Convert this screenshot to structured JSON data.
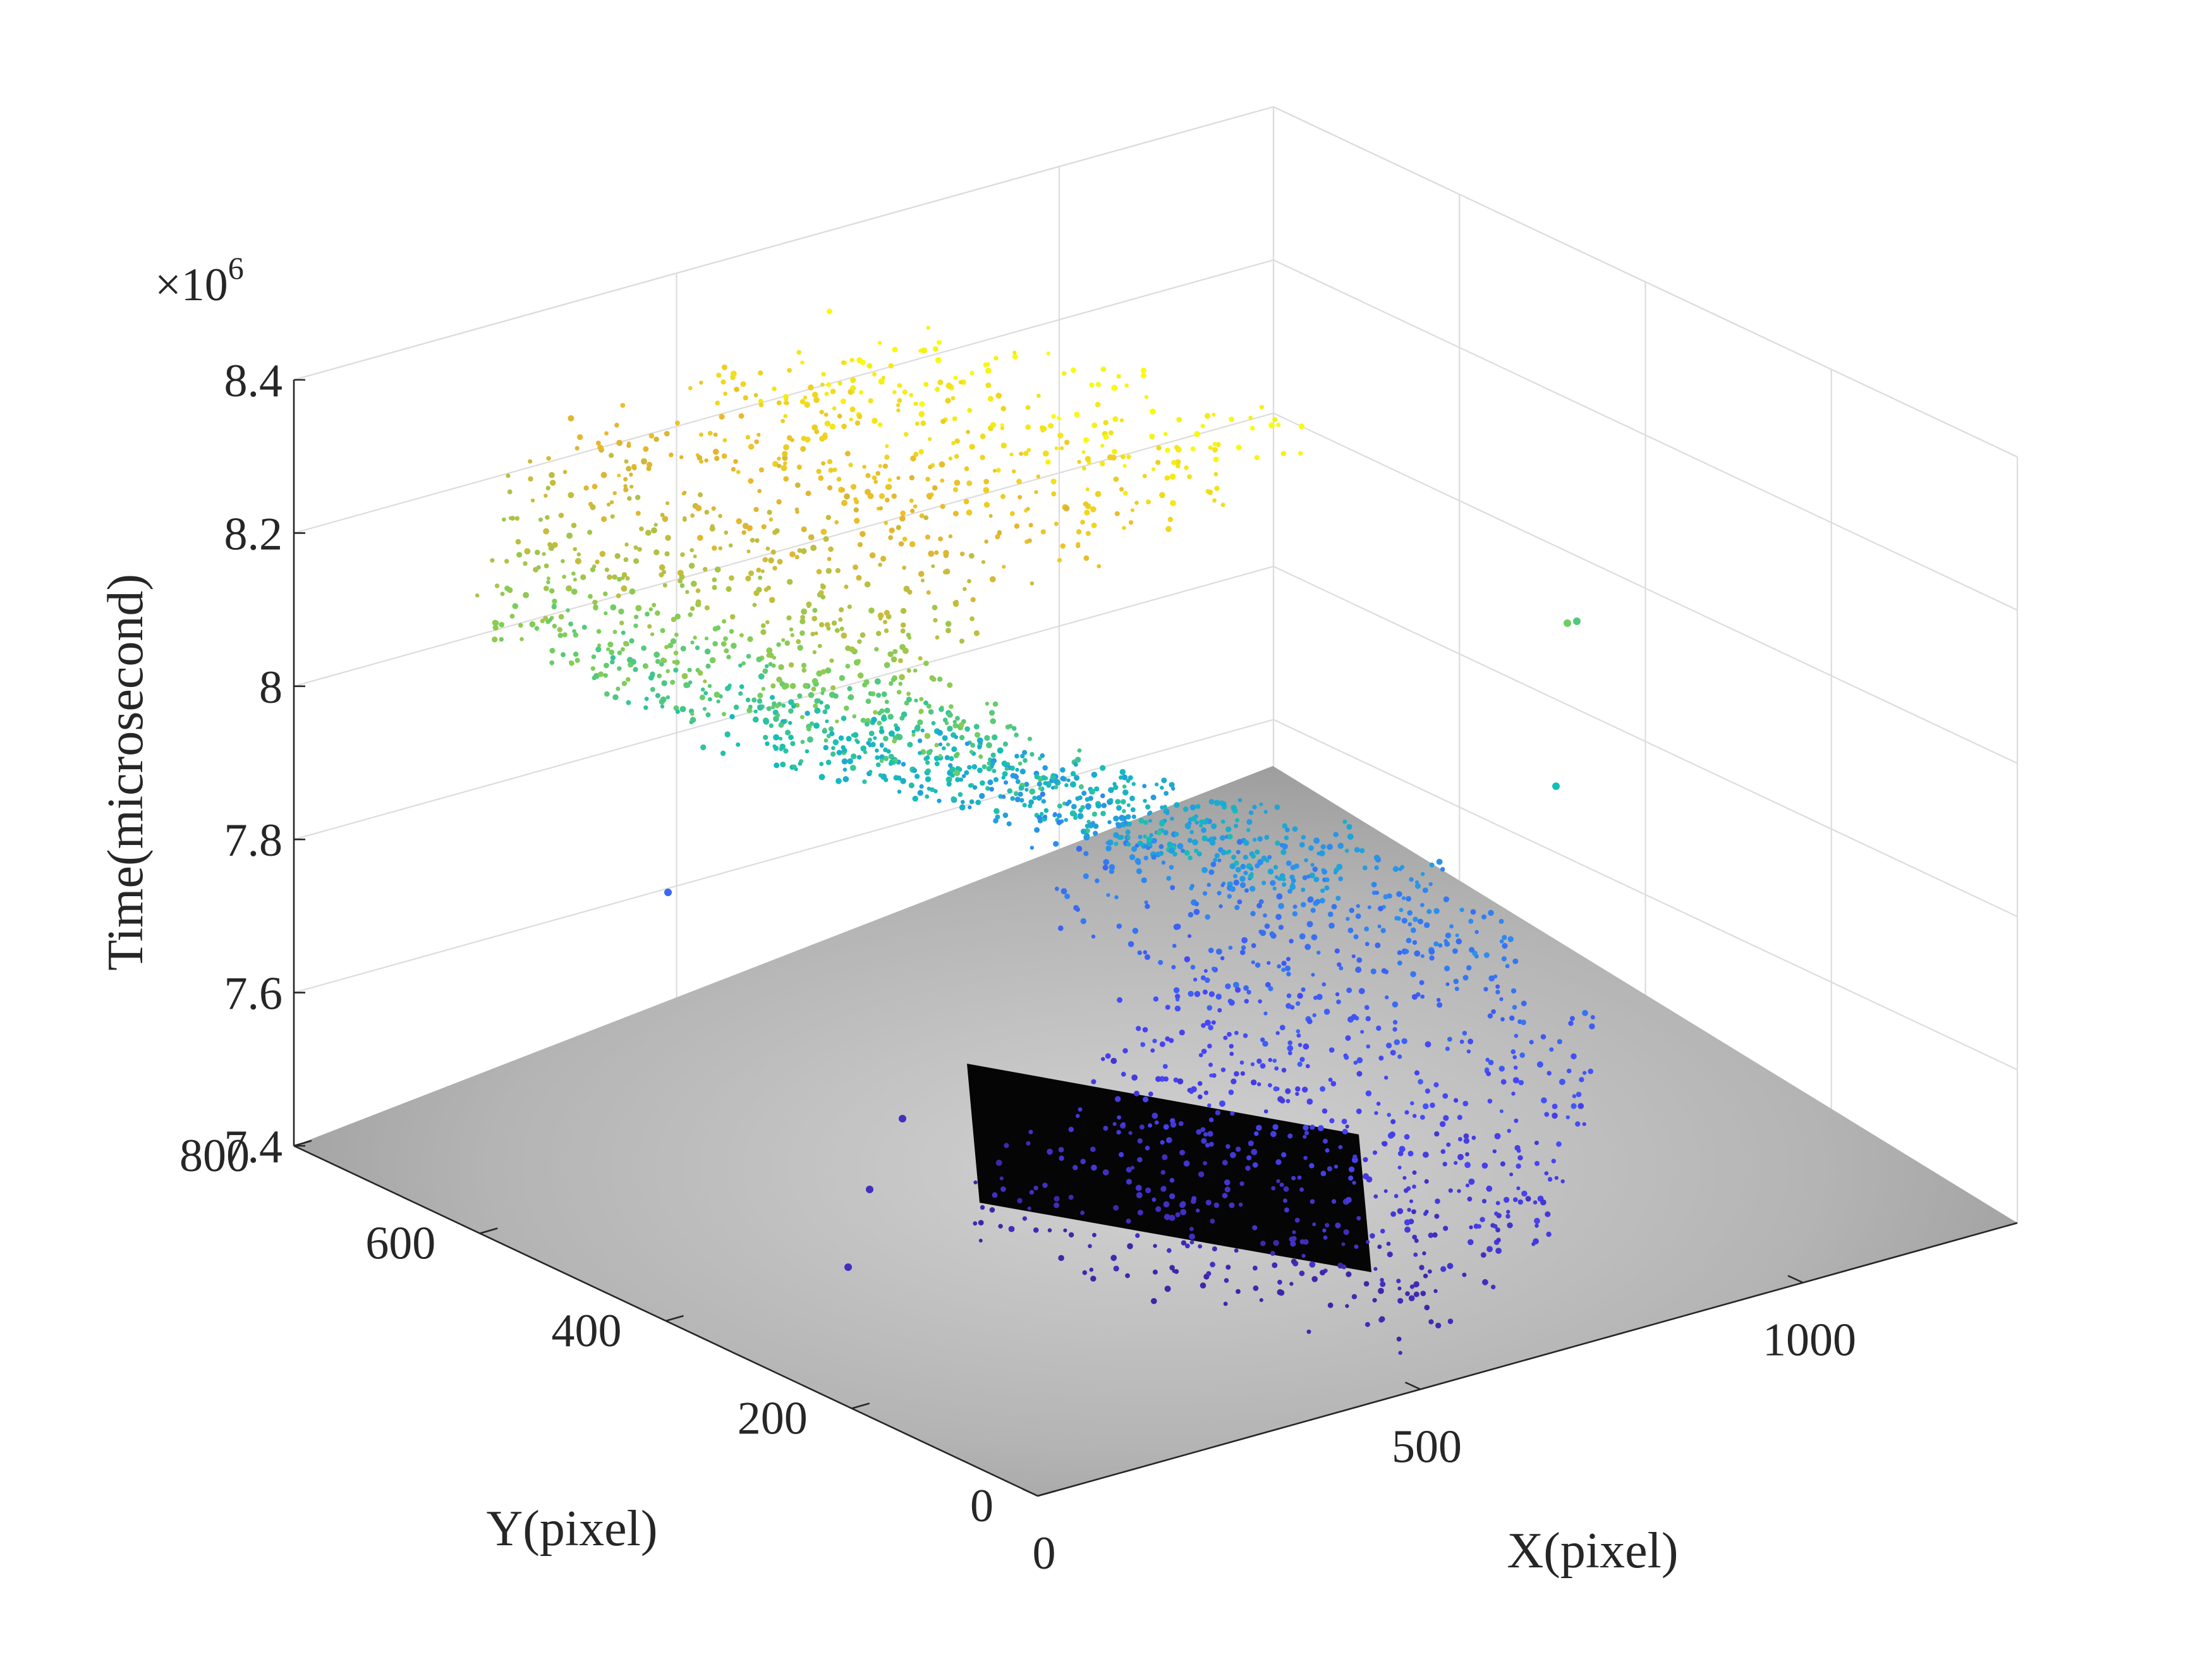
{
  "chart_data": {
    "type": "scatter",
    "title": "",
    "xlabel": "X(pixel)",
    "ylabel": "Y(pixel)",
    "zlabel": "Time(microsecond)",
    "z_exponent_label": "×10",
    "z_exponent_power": "6",
    "xlim": [
      0,
      1280
    ],
    "ylim": [
      0,
      800
    ],
    "zlim": [
      7.4,
      8.4
    ],
    "x_ticks": [
      0,
      500,
      1000
    ],
    "x_tick_labels": [
      "0",
      "500",
      "1000"
    ],
    "y_ticks": [
      0,
      200,
      400,
      600,
      800
    ],
    "y_tick_labels": [
      "0",
      "200",
      "400",
      "600",
      "800"
    ],
    "z_ticks": [
      7.4,
      7.6,
      7.8,
      8.0,
      8.2,
      8.4
    ],
    "z_tick_labels": [
      "7.4",
      "7.6",
      "7.8",
      "8",
      "8.2",
      "8.4"
    ],
    "z_scale_factor": 1000000,
    "grid": true,
    "floor": "grayscale image plane at Time = 7.4e6",
    "colormap": "parula",
    "colormap_stops": [
      "#3e26a8",
      "#4743f8",
      "#2c8ef0",
      "#13beb8",
      "#7acf5a",
      "#e6b42e",
      "#f9fb0e"
    ],
    "series": [
      {
        "x_range": [
          330,
          1120
        ],
        "y_range": [
          130,
          700
        ],
        "z_range": [
          7.45,
          8.38
        ],
        "description_points": [
          {
            "x": 450,
            "y": 420,
            "z": 7.45
          },
          {
            "x": 700,
            "y": 400,
            "z": 7.62
          },
          {
            "x": 560,
            "y": 520,
            "z": 7.8
          },
          {
            "x": 420,
            "y": 560,
            "z": 7.98
          },
          {
            "x": 640,
            "y": 480,
            "z": 8.18
          },
          {
            "x": 900,
            "y": 380,
            "z": 8.34
          }
        ]
      }
    ]
  }
}
